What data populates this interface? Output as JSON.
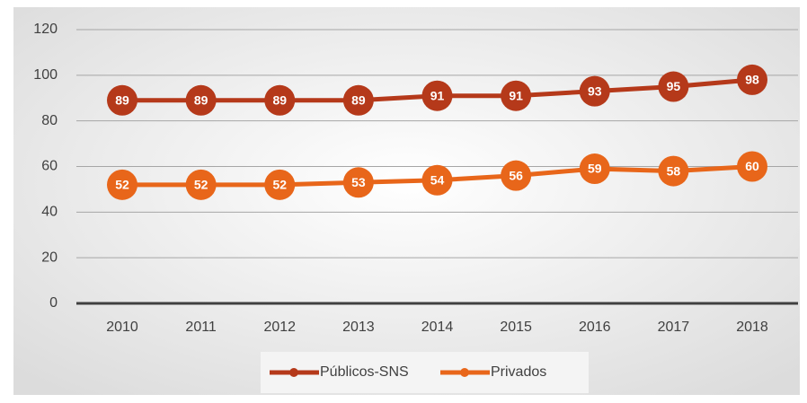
{
  "chart_data": {
    "type": "line",
    "categories": [
      "2010",
      "2011",
      "2012",
      "2013",
      "2014",
      "2015",
      "2016",
      "2017",
      "2018"
    ],
    "series": [
      {
        "name": "Públicos-SNS",
        "color": "#b5391a",
        "values": [
          89,
          89,
          89,
          89,
          91,
          91,
          93,
          95,
          98
        ]
      },
      {
        "name": "Privados",
        "color": "#e8661a",
        "values": [
          52,
          52,
          52,
          53,
          54,
          56,
          59,
          58,
          60
        ]
      }
    ],
    "ylim": [
      0,
      120
    ],
    "yticks": [
      0,
      20,
      40,
      60,
      80,
      100,
      120
    ],
    "grid": true,
    "legend": "bottom"
  }
}
